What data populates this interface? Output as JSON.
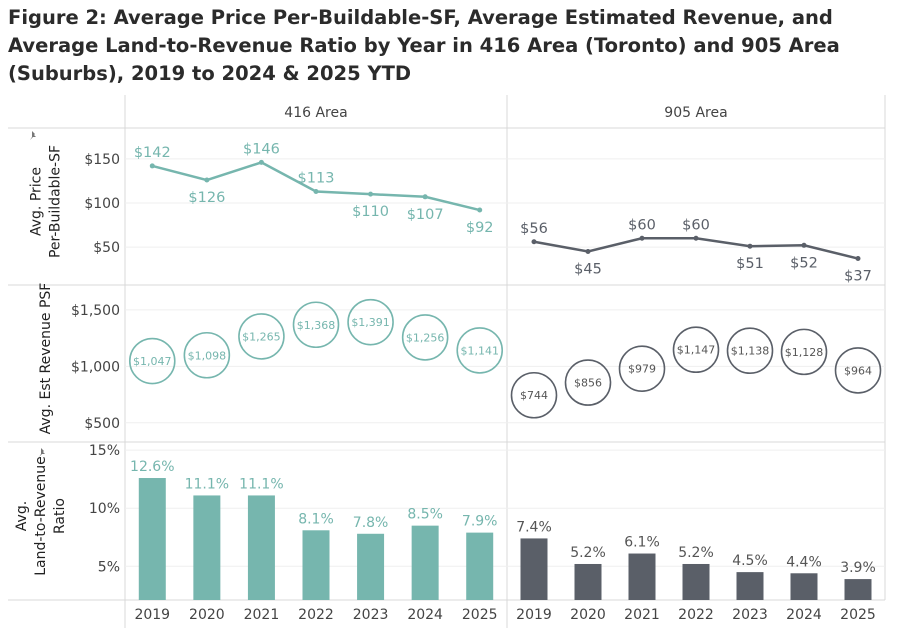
{
  "chart_data": {
    "type": "combo",
    "title": "Figure 2: Average Price Per-Buildable-SF, Average Estimated Revenue, and Average Land-to-Revenue Ratio by Year in 416 Area (Toronto) and 905 Area (Suburbs), 2019 to 2024 & 2025 YTD",
    "categories": [
      "2019",
      "2020",
      "2021",
      "2022",
      "2023",
      "2024",
      "2025"
    ],
    "panels": [
      "416 Area",
      "905 Area"
    ],
    "colors": {
      "416 Area": "#76b6ae",
      "905 Area": "#5a5f68"
    },
    "rows": [
      {
        "name": "price",
        "type": "line",
        "ylabel": [
          "Avg. Price",
          "Per-Buildable-SF"
        ],
        "ylim": [
          7,
          185
        ],
        "ticks": [
          50,
          100,
          150
        ],
        "tick_labels": [
          "$50",
          "$100",
          "$150"
        ],
        "series": [
          {
            "name": "416 Area",
            "values": [
              142,
              126,
              146,
              113,
              110,
              107,
              92
            ],
            "labels": [
              "$142",
              "$126",
              "$146",
              "$113",
              "$110",
              "$107",
              "$92"
            ],
            "label_pos": [
              "above",
              "below",
              "above",
              "above",
              "below",
              "below",
              "below"
            ]
          },
          {
            "name": "905 Area",
            "values": [
              56,
              45,
              60,
              60,
              51,
              52,
              37
            ],
            "labels": [
              "$56",
              "$45",
              "$60",
              "$60",
              "$51",
              "$52",
              "$37"
            ],
            "label_pos": [
              "above",
              "below",
              "above",
              "above",
              "below",
              "below",
              "below"
            ]
          }
        ]
      },
      {
        "name": "revenue",
        "type": "bubble",
        "ylabel": [
          "Avg. Est Revenue PSF"
        ],
        "ylim": [
          330,
          1720
        ],
        "ticks": [
          500,
          1000,
          1500
        ],
        "tick_labels": [
          "$500",
          "$1,000",
          "$1,500"
        ],
        "series": [
          {
            "name": "416 Area",
            "values": [
              1047,
              1098,
              1265,
              1368,
              1391,
              1256,
              1141
            ],
            "labels": [
              "$1,047",
              "$1,098",
              "$1,265",
              "$1,368",
              "$1,391",
              "$1,256",
              "$1,141"
            ]
          },
          {
            "name": "905 Area",
            "values": [
              744,
              856,
              979,
              1147,
              1138,
              1128,
              964
            ],
            "labels": [
              "$744",
              "$856",
              "$979",
              "$1,147",
              "$1,138",
              "$1,128",
              "$964"
            ]
          }
        ]
      },
      {
        "name": "ratio",
        "type": "bar",
        "ylabel": [
          "Avg.",
          "Land-to-Revenue",
          "Ratio"
        ],
        "ylim": [
          2.1,
          15.7
        ],
        "ticks": [
          5,
          10,
          15
        ],
        "tick_labels": [
          "5%",
          "10%",
          "15%"
        ],
        "series": [
          {
            "name": "416 Area",
            "values": [
              12.6,
              11.1,
              11.1,
              8.1,
              7.8,
              8.5,
              7.9
            ],
            "labels": [
              "12.6%",
              "11.1%",
              "11.1%",
              "8.1%",
              "7.8%",
              "8.5%",
              "7.9%"
            ]
          },
          {
            "name": "905 Area",
            "values": [
              7.4,
              5.2,
              6.1,
              5.2,
              4.5,
              4.4,
              3.9
            ],
            "labels": [
              "7.4%",
              "5.2%",
              "6.1%",
              "5.2%",
              "4.5%",
              "4.4%",
              "3.9%"
            ]
          }
        ]
      }
    ]
  }
}
